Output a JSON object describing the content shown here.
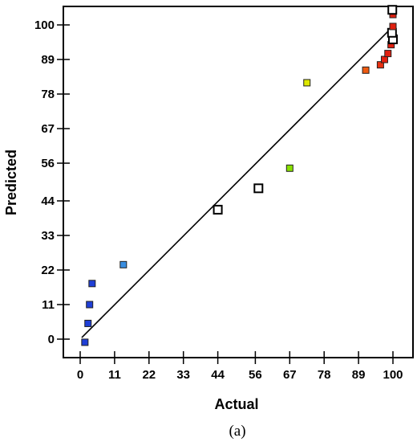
{
  "chart_data": {
    "type": "scatter",
    "title": "",
    "xlabel": "Actual",
    "ylabel": "Predicted",
    "caption": "(a)",
    "xlim": [
      0,
      100
    ],
    "ylim": [
      0,
      100
    ],
    "xticks": [
      0,
      11,
      22,
      33,
      44,
      56,
      67,
      78,
      89,
      100
    ],
    "yticks": [
      0,
      11,
      22,
      33,
      44,
      56,
      67,
      78,
      89,
      100
    ],
    "grid": false,
    "fit_line": {
      "x": [
        0.5,
        100
      ],
      "y": [
        0.5,
        99.5
      ]
    },
    "points": [
      {
        "x": 1.5,
        "y": -1.0,
        "color": "#1f3fd6",
        "hollow": false
      },
      {
        "x": 2.5,
        "y": 5.0,
        "color": "#1f3fd6",
        "hollow": false
      },
      {
        "x": 3.0,
        "y": 11.0,
        "color": "#1f3fd6",
        "hollow": false
      },
      {
        "x": 3.8,
        "y": 17.7,
        "color": "#1f3fd6",
        "hollow": false
      },
      {
        "x": 13.8,
        "y": 23.7,
        "color": "#3a8ee0",
        "hollow": false
      },
      {
        "x": 44.0,
        "y": 41.2,
        "color": "#000000",
        "hollow": true
      },
      {
        "x": 57.0,
        "y": 48.0,
        "color": "#000000",
        "hollow": true
      },
      {
        "x": 67.0,
        "y": 54.4,
        "color": "#88e000",
        "hollow": false
      },
      {
        "x": 72.5,
        "y": 81.6,
        "color": "#dde800",
        "hollow": false
      },
      {
        "x": 91.3,
        "y": 85.6,
        "color": "#ee5a10",
        "hollow": false
      },
      {
        "x": 96.0,
        "y": 87.3,
        "color": "#e83010",
        "hollow": false
      },
      {
        "x": 97.3,
        "y": 89.0,
        "color": "#e42010",
        "hollow": false
      },
      {
        "x": 98.4,
        "y": 90.9,
        "color": "#e02010",
        "hollow": false
      },
      {
        "x": 99.4,
        "y": 93.7,
        "color": "#e02010",
        "hollow": false
      },
      {
        "x": 100.0,
        "y": 95.4,
        "color": "#000000",
        "hollow": true
      },
      {
        "x": 99.7,
        "y": 97.5,
        "color": "#000000",
        "hollow": true
      },
      {
        "x": 100.0,
        "y": 99.5,
        "color": "#e02010",
        "hollow": false
      },
      {
        "x": 100.0,
        "y": 103.3,
        "color": "#e02010",
        "hollow": false
      },
      {
        "x": 99.8,
        "y": 104.8,
        "color": "#000000",
        "hollow": true
      }
    ]
  }
}
